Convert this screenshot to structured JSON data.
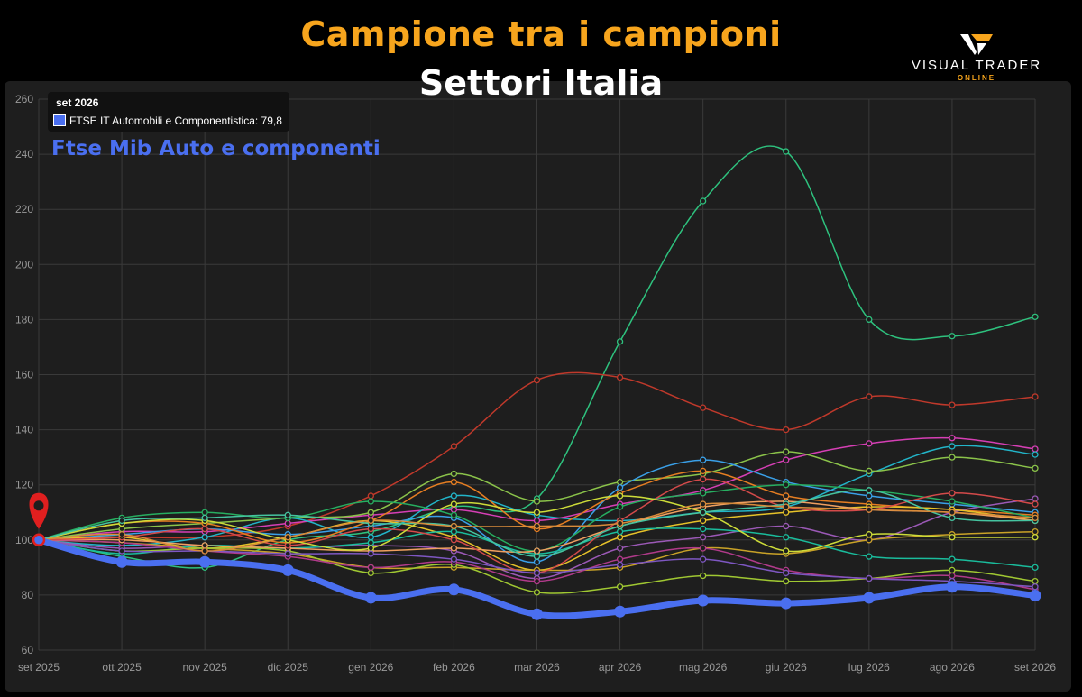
{
  "header": {
    "title": "Campione tra i campioni",
    "subtitle": "Settori Italia"
  },
  "logo": {
    "name": "VISUAL TRADER",
    "sub": "ONLINE",
    "accent": "#f7a51d"
  },
  "tooltip": {
    "title": "set 2026",
    "line": "FTSE IT Automobili e Componentistica: 79,8"
  },
  "highlight_label": "Ftse Mib Auto e componenti",
  "colors": {
    "background": "#000000",
    "panel": "#1e1e1e",
    "highlight": "#4a6ff0",
    "title": "#f7a51d",
    "marker": "#e01f1f"
  },
  "chart_data": {
    "type": "line",
    "title": "Campione tra i campioni",
    "subtitle": "Settori Italia",
    "x": [
      "set 2025",
      "ott 2025",
      "nov 2025",
      "dic 2025",
      "gen 2026",
      "feb 2026",
      "mar 2026",
      "apr 2026",
      "mag 2026",
      "giu 2026",
      "lug 2026",
      "ago 2026",
      "set 2026"
    ],
    "ylim": [
      60,
      260
    ],
    "yticks": [
      60,
      80,
      100,
      120,
      140,
      160,
      180,
      200,
      220,
      240,
      260
    ],
    "grid": true,
    "legend": "none",
    "series": [
      {
        "name": "FTSE IT Automobili e Componentistica",
        "color": "#4a6ff0",
        "highlight": true,
        "values": [
          100,
          92,
          92,
          89,
          79,
          82,
          73,
          74,
          78,
          77,
          79,
          83,
          79.8
        ]
      },
      {
        "color": "#2ec27e",
        "values": [
          100,
          94,
          90,
          100,
          103,
          112,
          115,
          172,
          223,
          241,
          180,
          174,
          181
        ]
      },
      {
        "color": "#c0392b",
        "values": [
          100,
          101,
          101,
          105,
          116,
          134,
          158,
          159,
          148,
          140,
          152,
          149,
          152
        ]
      },
      {
        "color": "#d63fb5",
        "values": [
          100,
          103,
          103,
          106,
          109,
          111,
          107,
          113,
          118,
          129,
          135,
          137,
          133
        ]
      },
      {
        "color": "#22b5c9",
        "values": [
          100,
          98,
          101,
          108,
          101,
          116,
          109,
          107,
          110,
          112,
          124,
          134,
          131
        ]
      },
      {
        "color": "#8bc34a",
        "values": [
          100,
          104,
          106,
          108,
          110,
          124,
          114,
          121,
          124,
          132,
          125,
          130,
          126
        ]
      },
      {
        "color": "#3aa0e8",
        "values": [
          100,
          102,
          104,
          102,
          105,
          108,
          92,
          119,
          129,
          121,
          116,
          113,
          110
        ]
      },
      {
        "color": "#e67e22",
        "values": [
          100,
          106,
          106,
          99,
          107,
          121,
          104,
          117,
          125,
          116,
          113,
          111,
          109
        ]
      },
      {
        "color": "#9b59b6",
        "values": [
          100,
          97,
          98,
          97,
          98,
          96,
          86,
          97,
          101,
          105,
          100,
          110,
          115
        ]
      },
      {
        "color": "#e6c229",
        "values": [
          100,
          101,
          97,
          101,
          107,
          101,
          89,
          101,
          107,
          110,
          112,
          111,
          107
        ]
      },
      {
        "color": "#27ae60",
        "values": [
          100,
          108,
          110,
          108,
          114,
          109,
          96,
          112,
          117,
          120,
          118,
          114,
          108
        ]
      },
      {
        "color": "#c9a227",
        "values": [
          100,
          99,
          97,
          95,
          90,
          90,
          89,
          90,
          97,
          95,
          100,
          102,
          103
        ]
      },
      {
        "color": "#1abc9c",
        "values": [
          100,
          95,
          98,
          97,
          99,
          103,
          95,
          103,
          104,
          101,
          94,
          93,
          90
        ]
      },
      {
        "color": "#a0c832",
        "values": [
          100,
          96,
          97,
          96,
          88,
          91,
          81,
          83,
          87,
          85,
          86,
          89,
          85
        ]
      },
      {
        "color": "#b03a8a",
        "values": [
          100,
          99,
          96,
          94,
          90,
          92,
          85,
          93,
          97,
          89,
          86,
          87,
          82
        ]
      },
      {
        "color": "#f0a060",
        "values": [
          100,
          100,
          98,
          97,
          96,
          97,
          96,
          105,
          112,
          114,
          111,
          110,
          107
        ]
      },
      {
        "color": "#d44a4a",
        "values": [
          100,
          101,
          104,
          98,
          104,
          100,
          88,
          107,
          122,
          112,
          111,
          117,
          113
        ]
      },
      {
        "color": "#cddc39",
        "values": [
          100,
          106,
          107,
          100,
          97,
          113,
          110,
          116,
          110,
          96,
          102,
          101,
          101
        ]
      },
      {
        "color": "#7e57c2",
        "values": [
          100,
          96,
          96,
          95,
          95,
          93,
          88,
          91,
          93,
          88,
          86,
          85,
          83
        ]
      },
      {
        "color": "#45c4a0",
        "values": [
          100,
          107,
          108,
          109,
          106,
          105,
          94,
          105,
          110,
          113,
          118,
          108,
          107
        ]
      },
      {
        "color": "#d98b3a",
        "values": [
          100,
          102,
          96,
          101,
          107,
          105,
          105,
          106,
          113,
          112,
          111,
          110,
          108
        ]
      }
    ]
  }
}
